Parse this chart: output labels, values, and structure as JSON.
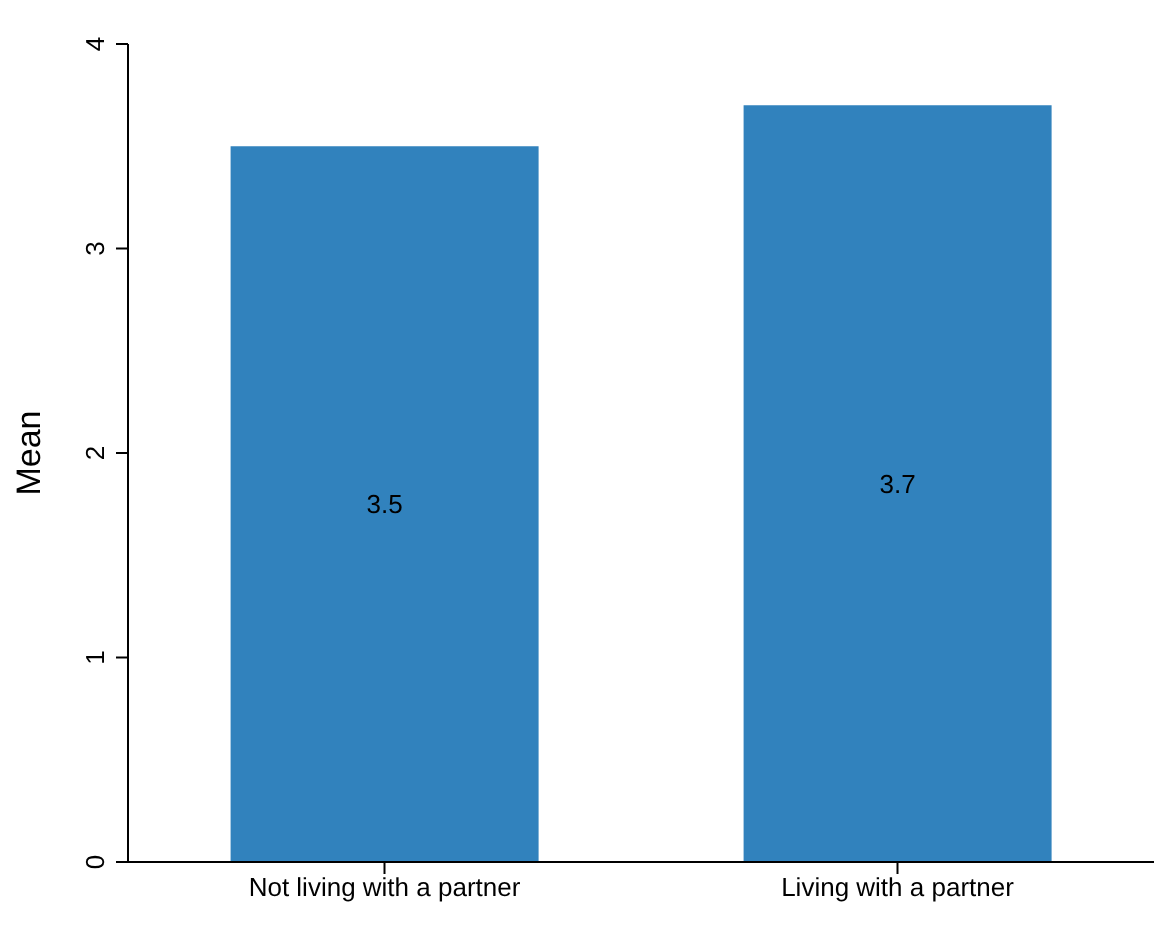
{
  "chart_data": {
    "type": "bar",
    "ylabel": "Mean",
    "categories": [
      "Not living with a partner",
      "Living with a partner"
    ],
    "values": [
      3.5,
      3.7
    ],
    "color": "#3182bd",
    "ylim": [
      0,
      4
    ],
    "yticks": [
      0,
      1,
      2,
      3,
      4
    ],
    "grid": false,
    "data_labels": true
  }
}
